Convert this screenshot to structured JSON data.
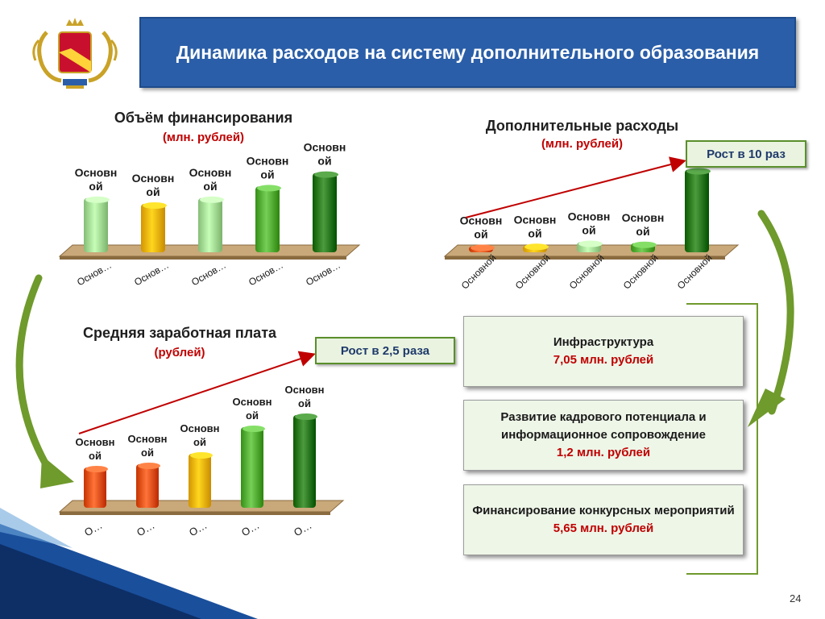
{
  "slide": {
    "title": "Динамика расходов на систему дополнительного образования",
    "page_number": "24"
  },
  "colors": {
    "title_bg": "#2a5ea8",
    "light_green": "#a8e09a",
    "orange_yellow": "#f5b800",
    "green": "#58b23a",
    "dark_green": "#2e7d1f",
    "orange_red": "#e8561a",
    "arrow_red": "#c00000",
    "arrow_olive": "#6f9a2c"
  },
  "emblem": {
    "icon": "coat-of-arms-icon"
  },
  "charts": {
    "funding": {
      "title": "Объём финансирования",
      "subtitle": "(млн. рублей)"
    },
    "extra": {
      "title": "Дополнительные расходы",
      "subtitle": "(млн. рублей)",
      "growth_label": "Рост в 10 раз"
    },
    "salary": {
      "title": "Средняя заработная плата",
      "subtitle": "(рублей)",
      "growth_label": "Рост в  2,5 раза"
    }
  },
  "chart_data": [
    {
      "id": "funding",
      "type": "bar",
      "categories": [
        "Основ…",
        "Основ…",
        "Основ…",
        "Основ…",
        "Основ…"
      ],
      "values": [
        56,
        50,
        56,
        68,
        82
      ],
      "data_labels": [
        "Основн ой",
        "Основн ой",
        "Основн ой",
        "Основн ой",
        "Основн ой"
      ],
      "ylim": [
        0,
        100
      ],
      "colors": [
        "#a8e09a",
        "#f5b800",
        "#a8e09a",
        "#58b23a",
        "#2e7d1f"
      ]
    },
    {
      "id": "extra",
      "type": "bar",
      "categories": [
        "Основной",
        "Основной",
        "Основной",
        "Основной",
        "Основной"
      ],
      "values": [
        6,
        7,
        10,
        9,
        82
      ],
      "data_labels": [
        "Основн ой",
        "Основн ой",
        "Основн ой",
        "Основн ой",
        "Основн ой"
      ],
      "ylim": [
        0,
        100
      ],
      "colors": [
        "#e8561a",
        "#f5b800",
        "#a8e09a",
        "#58b23a",
        "#2e7d1f"
      ]
    },
    {
      "id": "salary",
      "type": "bar",
      "categories": [
        "О…",
        "О…",
        "О…",
        "О…",
        "О…"
      ],
      "values": [
        50,
        54,
        67,
        100,
        115
      ],
      "data_labels": [
        "Основн ой",
        "Основн ой",
        "Основн ой",
        "Основн ой",
        "Основн ой"
      ],
      "ylim": [
        0,
        130
      ],
      "colors": [
        "#e8561a",
        "#e8561a",
        "#f5b800",
        "#58b23a",
        "#2e7d1f"
      ]
    }
  ],
  "info_boxes": [
    {
      "title": "Инфраструктура",
      "amount": "7,05 млн. рублей"
    },
    {
      "title": "Развитие кадрового потенциала и информационное сопровождение",
      "amount": "1,2 млн. рублей"
    },
    {
      "title": "Финансирование конкурсных мероприятий",
      "amount": "5,65 млн. рублей"
    }
  ]
}
